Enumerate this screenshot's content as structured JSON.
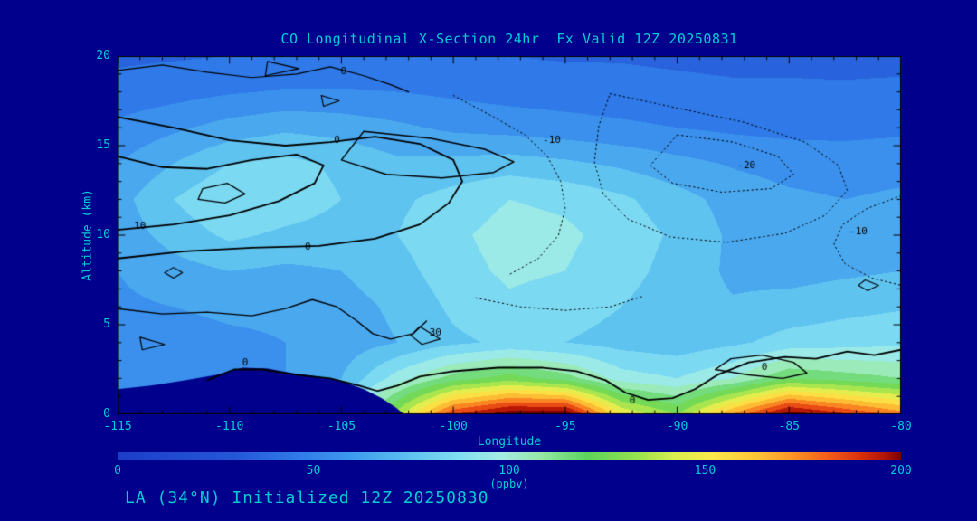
{
  "footer": "LA (34°N) Initialized 12Z 20250830",
  "colors": {
    "background": "#00008c",
    "text": "#00ccd4",
    "contour": "#000000"
  },
  "chart_data": {
    "type": "heatmap",
    "title": "CO Longitudinal X-Section 24hr  Fx Valid 12Z 20250831",
    "xlabel": "Longitude",
    "ylabel": "Altitude (km)",
    "xlim": [
      -115,
      -80
    ],
    "ylim": [
      0,
      20
    ],
    "x_ticks": [
      -115,
      -110,
      -105,
      -100,
      -95,
      -90,
      -85,
      -80
    ],
    "y_ticks": [
      0,
      5,
      10,
      15,
      20
    ],
    "x": [
      -115,
      -112.5,
      -110,
      -107.5,
      -105,
      -102.5,
      -100,
      -97.5,
      -95,
      -92.5,
      -90,
      -87.5,
      -85,
      -82.5,
      -80
    ],
    "y": [
      0,
      2,
      4,
      6,
      8,
      10,
      12,
      14,
      16,
      18,
      20
    ],
    "values": [
      [
        60,
        60,
        62,
        66,
        82,
        135,
        190,
        208,
        210,
        150,
        130,
        172,
        208,
        192,
        176
      ],
      [
        50,
        52,
        55,
        60,
        70,
        95,
        115,
        125,
        115,
        95,
        90,
        100,
        120,
        115,
        110
      ],
      [
        55,
        56,
        58,
        60,
        64,
        70,
        78,
        82,
        80,
        76,
        74,
        78,
        84,
        86,
        88
      ],
      [
        58,
        60,
        62,
        62,
        66,
        72,
        82,
        88,
        85,
        80,
        74,
        71,
        74,
        77,
        79
      ],
      [
        60,
        66,
        70,
        68,
        70,
        76,
        86,
        92,
        90,
        84,
        76,
        68,
        66,
        68,
        70
      ],
      [
        64,
        74,
        82,
        78,
        76,
        80,
        88,
        94,
        92,
        86,
        78,
        68,
        64,
        63,
        66
      ],
      [
        66,
        80,
        90,
        86,
        80,
        78,
        84,
        90,
        88,
        82,
        74,
        66,
        62,
        60,
        62
      ],
      [
        60,
        70,
        80,
        83,
        78,
        72,
        73,
        75,
        72,
        68,
        63,
        59,
        56,
        55,
        56
      ],
      [
        52,
        58,
        64,
        68,
        66,
        62,
        58,
        56,
        54,
        52,
        50,
        48,
        47,
        47,
        48
      ],
      [
        44,
        46,
        49,
        51,
        51,
        50,
        48,
        46,
        45,
        44,
        43,
        42,
        42,
        42,
        43
      ],
      [
        38,
        39,
        40,
        41,
        41,
        41,
        40,
        40,
        39,
        39,
        38,
        37,
        37,
        36,
        36
      ]
    ],
    "band_interval": 10,
    "colormap": [
      [
        0,
        "#1c3ec8"
      ],
      [
        30,
        "#2558d8"
      ],
      [
        45,
        "#2f79e8"
      ],
      [
        60,
        "#3f9bee"
      ],
      [
        75,
        "#5fc3f0"
      ],
      [
        88,
        "#85dff2"
      ],
      [
        98,
        "#a5eee4"
      ],
      [
        108,
        "#96e8a8"
      ],
      [
        120,
        "#5cd45c"
      ],
      [
        132,
        "#93e14f"
      ],
      [
        142,
        "#d9ef4e"
      ],
      [
        152,
        "#fce94a"
      ],
      [
        163,
        "#fdc637"
      ],
      [
        172,
        "#fc9727"
      ],
      [
        181,
        "#f5611a"
      ],
      [
        190,
        "#d92f0d"
      ],
      [
        196,
        "#b01505"
      ],
      [
        200,
        "#7c0200"
      ]
    ],
    "colorbar": {
      "min": 0,
      "max": 200,
      "ticks": [
        0,
        50,
        100,
        150,
        200
      ],
      "unit": "(ppbv)"
    },
    "terrain": [
      [
        -115,
        1.4
      ],
      [
        -113.5,
        1.6
      ],
      [
        -112,
        1.9
      ],
      [
        -110.6,
        2.2
      ],
      [
        -109.4,
        2.6
      ],
      [
        -108.3,
        2.55
      ],
      [
        -107.2,
        2.3
      ],
      [
        -106,
        2.1
      ],
      [
        -104.9,
        1.8
      ],
      [
        -104,
        1.4
      ],
      [
        -103.2,
        0.9
      ],
      [
        -102.6,
        0.4
      ],
      [
        -102.2,
        0
      ]
    ],
    "contours": [
      {
        "style": "solid",
        "w": 1.8,
        "closed": false,
        "points": [
          [
            -115,
            8.7
          ],
          [
            -112,
            9.1
          ],
          [
            -109,
            9.3
          ],
          [
            -106,
            9.4
          ],
          [
            -103.5,
            9.8
          ],
          [
            -101.5,
            10.6
          ],
          [
            -100.2,
            11.8
          ],
          [
            -99.6,
            13
          ],
          [
            -100,
            14.2
          ],
          [
            -101.5,
            15.1
          ],
          [
            -103.5,
            15.5
          ],
          [
            -105.5,
            15.2
          ],
          [
            -107.5,
            15
          ],
          [
            -110,
            15.3
          ],
          [
            -112.5,
            16
          ],
          [
            -115,
            16.6
          ]
        ],
        "labels": [
          {
            "text": "0",
            "pos": [
              -106.5,
              9.35
            ]
          },
          {
            "text": "0",
            "pos": [
              -105.2,
              15.3
            ]
          }
        ]
      },
      {
        "style": "solid",
        "w": 1.8,
        "closed": false,
        "points": [
          [
            -115,
            10.3
          ],
          [
            -112.5,
            10.6
          ],
          [
            -110,
            11.1
          ],
          [
            -107.8,
            11.9
          ],
          [
            -106.2,
            12.9
          ],
          [
            -105.8,
            13.9
          ],
          [
            -107,
            14.5
          ],
          [
            -109,
            14.2
          ],
          [
            -111,
            13.7
          ],
          [
            -113,
            13.8
          ],
          [
            -115,
            14.4
          ]
        ],
        "labels": [
          {
            "text": "10",
            "pos": [
              -114,
              10.5
            ]
          }
        ]
      },
      {
        "style": "solid",
        "w": 1.3,
        "closed": true,
        "points": [
          [
            -111.4,
            12
          ],
          [
            -110.2,
            11.8
          ],
          [
            -109.3,
            12.3
          ],
          [
            -110.1,
            12.9
          ],
          [
            -111.2,
            12.6
          ]
        ],
        "labels": []
      },
      {
        "style": "solid",
        "w": 1.5,
        "closed": true,
        "points": [
          [
            -104,
            15.8
          ],
          [
            -101,
            15.4
          ],
          [
            -98.6,
            14.8
          ],
          [
            -97.3,
            14.1
          ],
          [
            -98.2,
            13.5
          ],
          [
            -100.5,
            13.2
          ],
          [
            -103,
            13.4
          ],
          [
            -105,
            14.2
          ]
        ],
        "labels": []
      },
      {
        "style": "solid",
        "w": 1.2,
        "closed": false,
        "points": [
          [
            -115,
            19.2
          ],
          [
            -113,
            19.5
          ],
          [
            -111,
            19.1
          ],
          [
            -109,
            18.8
          ],
          [
            -107,
            19
          ],
          [
            -105.5,
            19.4
          ],
          [
            -104,
            18.9
          ],
          [
            -102.8,
            18.4
          ],
          [
            -102,
            18
          ]
        ],
        "labels": [
          {
            "text": "0",
            "pos": [
              -104.9,
              19.15
            ]
          }
        ]
      },
      {
        "style": "solid",
        "w": 1.2,
        "closed": true,
        "points": [
          [
            -108.3,
            19.7
          ],
          [
            -106.9,
            19.3
          ],
          [
            -108.4,
            18.9
          ]
        ],
        "labels": []
      },
      {
        "style": "solid",
        "w": 1.1,
        "closed": true,
        "points": [
          [
            -105.9,
            17.8
          ],
          [
            -105.1,
            17.5
          ],
          [
            -105.8,
            17.2
          ]
        ],
        "labels": []
      },
      {
        "style": "solid",
        "w": 1.4,
        "closed": false,
        "points": [
          [
            -115,
            5.9
          ],
          [
            -113,
            5.6
          ],
          [
            -111,
            5.7
          ],
          [
            -109,
            5.5
          ],
          [
            -107.5,
            5.9
          ],
          [
            -106.3,
            6.4
          ],
          [
            -105.2,
            6
          ],
          [
            -104.3,
            5.2
          ],
          [
            -103.6,
            4.5
          ],
          [
            -102.8,
            4.2
          ],
          [
            -101.8,
            4.5
          ],
          [
            -101.2,
            5.2
          ]
        ],
        "labels": []
      },
      {
        "style": "solid",
        "w": 1.2,
        "closed": true,
        "points": [
          [
            -101.5,
            4.9
          ],
          [
            -100.6,
            4.2
          ],
          [
            -101.4,
            3.9
          ],
          [
            -101.9,
            4.4
          ]
        ],
        "labels": [
          {
            "text": "30",
            "pos": [
              -100.8,
              4.55
            ]
          }
        ]
      },
      {
        "style": "solid",
        "w": 1.2,
        "closed": true,
        "points": [
          [
            -114,
            4.3
          ],
          [
            -112.9,
            3.9
          ],
          [
            -113.9,
            3.6
          ]
        ],
        "labels": []
      },
      {
        "style": "solid",
        "w": 1.1,
        "closed": true,
        "points": [
          [
            -112.9,
            7.9
          ],
          [
            -112.5,
            7.6
          ],
          [
            -112.1,
            7.9
          ],
          [
            -112.5,
            8.2
          ]
        ],
        "labels": []
      },
      {
        "style": "solid",
        "w": 1.8,
        "closed": false,
        "points": [
          [
            -111,
            1.9
          ],
          [
            -109.8,
            2.5
          ],
          [
            -108.5,
            2.5
          ],
          [
            -107,
            2.2
          ],
          [
            -105.5,
            2
          ],
          [
            -104.2,
            1.6
          ],
          [
            -103.4,
            1.3
          ],
          [
            -102.5,
            1.6
          ],
          [
            -101.5,
            2.1
          ],
          [
            -100,
            2.4
          ],
          [
            -98,
            2.6
          ],
          [
            -96,
            2.6
          ],
          [
            -94.5,
            2.4
          ],
          [
            -93.2,
            1.9
          ],
          [
            -92.3,
            1.2
          ],
          [
            -91.3,
            0.8
          ],
          [
            -90.2,
            0.9
          ],
          [
            -89.2,
            1.4
          ],
          [
            -88.2,
            2.2
          ],
          [
            -86.8,
            2.9
          ],
          [
            -85.2,
            3.2
          ],
          [
            -83.8,
            3.1
          ],
          [
            -82.4,
            3.5
          ],
          [
            -81.2,
            3.3
          ],
          [
            -80,
            3.6
          ]
        ],
        "labels": [
          {
            "text": "0",
            "pos": [
              -109.3,
              2.85
            ]
          },
          {
            "text": "0",
            "pos": [
              -92,
              0.75
            ]
          }
        ]
      },
      {
        "style": "solid",
        "w": 1.4,
        "closed": true,
        "points": [
          [
            -88.3,
            2.5
          ],
          [
            -86.8,
            2.2
          ],
          [
            -85.3,
            2
          ],
          [
            -84.2,
            2.3
          ],
          [
            -84.8,
            2.9
          ],
          [
            -86.2,
            3.3
          ],
          [
            -87.6,
            3.1
          ]
        ],
        "labels": [
          {
            "text": "0",
            "pos": [
              -86.1,
              2.6
            ]
          }
        ]
      },
      {
        "style": "solid",
        "w": 1.1,
        "closed": true,
        "points": [
          [
            -81.6,
            7.5
          ],
          [
            -81,
            7.2
          ],
          [
            -81.5,
            6.9
          ],
          [
            -81.9,
            7.2
          ]
        ],
        "labels": []
      },
      {
        "style": "dotted",
        "w": 1,
        "closed": false,
        "points": [
          [
            -100,
            17.8
          ],
          [
            -98.2,
            16.6
          ],
          [
            -96.8,
            15.6
          ],
          [
            -95.8,
            14.4
          ],
          [
            -95.2,
            13
          ],
          [
            -95,
            11.5
          ],
          [
            -95.3,
            10
          ],
          [
            -96.2,
            8.7
          ],
          [
            -97.5,
            7.8
          ]
        ],
        "labels": [
          {
            "text": "-10",
            "pos": [
              -95.6,
              15.3
            ]
          }
        ]
      },
      {
        "style": "dotted",
        "w": 1,
        "closed": true,
        "points": [
          [
            -90,
            15.6
          ],
          [
            -87.5,
            15.2
          ],
          [
            -85.5,
            14.4
          ],
          [
            -84.8,
            13.4
          ],
          [
            -85.8,
            12.6
          ],
          [
            -88,
            12.4
          ],
          [
            -90.2,
            12.9
          ],
          [
            -91.2,
            13.9
          ]
        ],
        "labels": [
          {
            "text": "-20",
            "pos": [
              -86.9,
              13.9
            ]
          }
        ]
      },
      {
        "style": "dotted",
        "w": 1,
        "closed": false,
        "points": [
          [
            -80,
            12.2
          ],
          [
            -81.5,
            11.5
          ],
          [
            -82.6,
            10.6
          ],
          [
            -83,
            9.5
          ],
          [
            -82.5,
            8.4
          ],
          [
            -81.3,
            7.6
          ],
          [
            -80,
            7.2
          ]
        ],
        "labels": [
          {
            "text": "-10",
            "pos": [
              -81.9,
              10.2
            ]
          }
        ]
      },
      {
        "style": "dotted",
        "w": 1,
        "closed": true,
        "points": [
          [
            -93,
            17.9
          ],
          [
            -90,
            17.1
          ],
          [
            -87,
            16.3
          ],
          [
            -84.3,
            15.2
          ],
          [
            -82.8,
            13.9
          ],
          [
            -82.4,
            12.5
          ],
          [
            -83.4,
            11.1
          ],
          [
            -85.2,
            10.1
          ],
          [
            -87.8,
            9.6
          ],
          [
            -90.3,
            9.9
          ],
          [
            -92.2,
            10.9
          ],
          [
            -93.3,
            12.3
          ],
          [
            -93.7,
            14.1
          ],
          [
            -93.5,
            16.1
          ]
        ],
        "labels": []
      },
      {
        "style": "dotted",
        "w": 1,
        "closed": false,
        "points": [
          [
            -99,
            6.5
          ],
          [
            -97,
            6
          ],
          [
            -95,
            5.8
          ],
          [
            -93,
            6
          ],
          [
            -91.5,
            6.6
          ]
        ],
        "labels": []
      }
    ]
  }
}
